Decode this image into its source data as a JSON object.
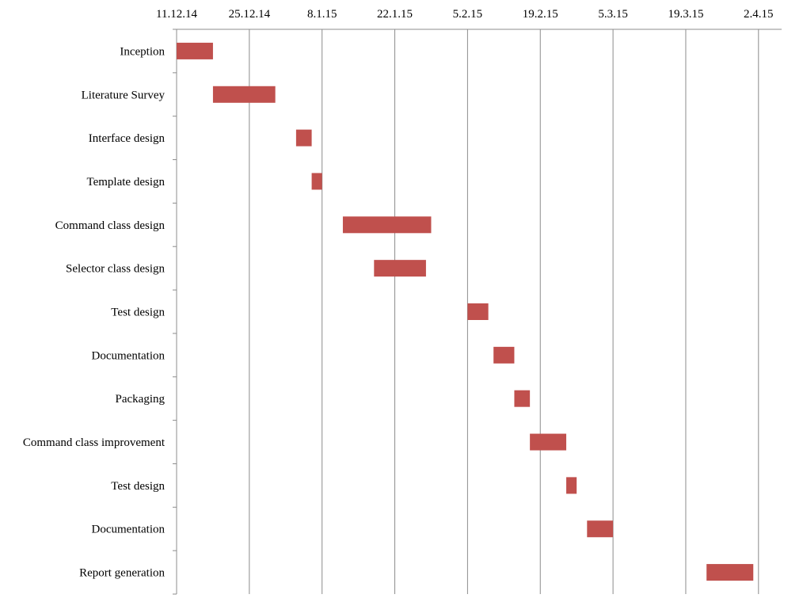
{
  "chart_data": {
    "type": "gantt",
    "title": "",
    "xlabel": "",
    "ylabel": "",
    "x_ticks": [
      "11.12.14",
      "25.12.14",
      "8.1.15",
      "22.1.15",
      "5.2.15",
      "19.2.15",
      "5.3.15",
      "19.3.15",
      "2.4.15"
    ],
    "x_range": [
      "2014-12-11",
      "2015-04-06"
    ],
    "grid": true,
    "bar_color": "#c0504d",
    "tasks": [
      {
        "label": "Inception",
        "start": "2014-12-11",
        "end": "2014-12-18"
      },
      {
        "label": "Literature Survey",
        "start": "2014-12-18",
        "end": "2014-12-30"
      },
      {
        "label": "Interface design",
        "start": "2015-01-03",
        "end": "2015-01-06"
      },
      {
        "label": "Template design",
        "start": "2015-01-06",
        "end": "2015-01-08"
      },
      {
        "label": "Command class design",
        "start": "2015-01-12",
        "end": "2015-01-29"
      },
      {
        "label": "Selector class design",
        "start": "2015-01-18",
        "end": "2015-01-28"
      },
      {
        "label": "Test design",
        "start": "2015-02-05",
        "end": "2015-02-09"
      },
      {
        "label": "Documentation",
        "start": "2015-02-10",
        "end": "2015-02-14"
      },
      {
        "label": "Packaging",
        "start": "2015-02-14",
        "end": "2015-02-17"
      },
      {
        "label": "Command class improvement",
        "start": "2015-02-17",
        "end": "2015-02-24"
      },
      {
        "label": "Test design",
        "start": "2015-02-24",
        "end": "2015-02-26"
      },
      {
        "label": "Documentation",
        "start": "2015-02-28",
        "end": "2015-03-05"
      },
      {
        "label": "Report generation",
        "start": "2015-03-23",
        "end": "2015-04-01"
      }
    ]
  }
}
